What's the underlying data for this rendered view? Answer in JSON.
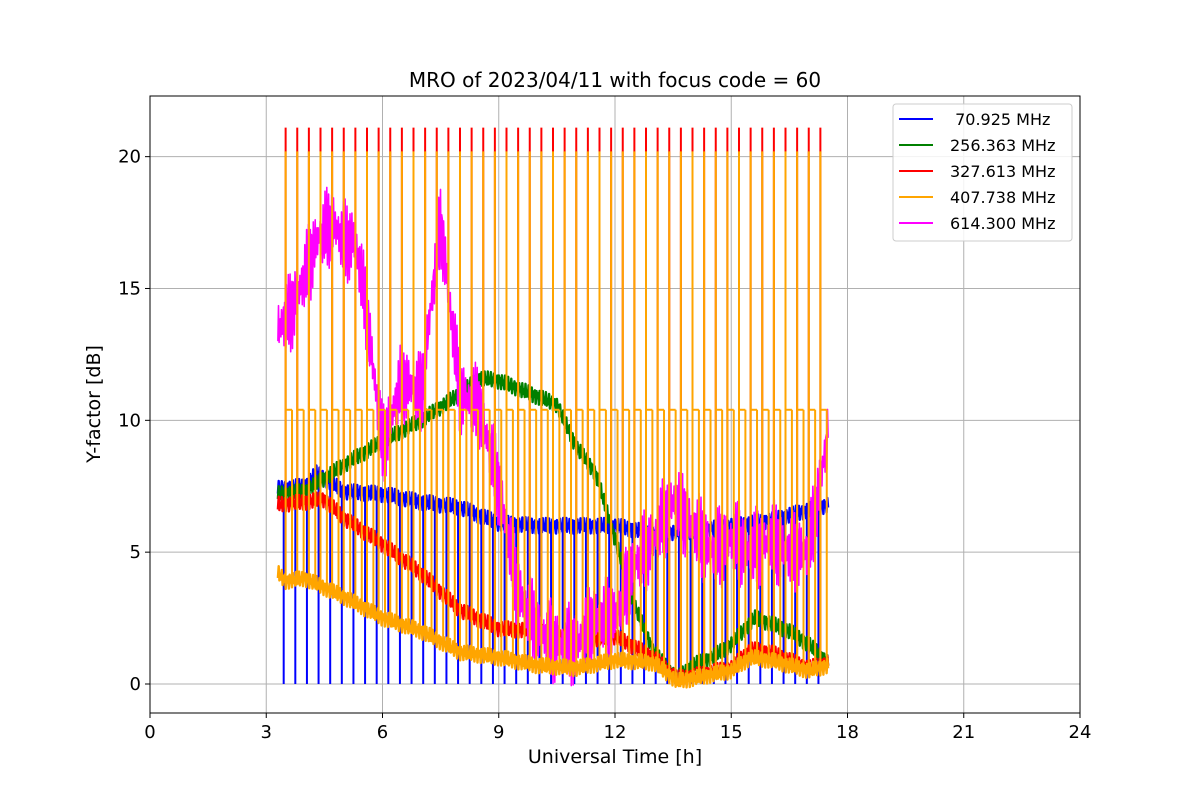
{
  "chart_data": {
    "type": "line",
    "title": "MRO of 2023/04/11 with focus code = 60",
    "xlabel": "Universal Time [h]",
    "ylabel": "Y-factor [dB]",
    "xlim": [
      0,
      24
    ],
    "ylim": [
      -1.1,
      22.3
    ],
    "xticks": [
      0,
      3,
      6,
      9,
      12,
      15,
      18,
      21,
      24
    ],
    "yticks": [
      0,
      5,
      10,
      15,
      20
    ],
    "grid": true,
    "legend_position": "top-right",
    "series": [
      {
        "name": " 70.925 MHz",
        "color": "#0000ff",
        "x": [
          3.3,
          4.0,
          4.3,
          5.0,
          6.0,
          7.0,
          8.0,
          9.0,
          10.0,
          11.0,
          12.0,
          13.0,
          14.0,
          15.0,
          16.0,
          17.0,
          17.5
        ],
        "values": [
          7.4,
          7.5,
          8.0,
          7.3,
          7.2,
          6.9,
          6.7,
          6.1,
          6.0,
          6.0,
          6.0,
          5.7,
          5.8,
          6.0,
          6.2,
          6.6,
          6.8
        ],
        "spikes": {
          "start": 3.45,
          "end": 17.5,
          "step": 0.3,
          "to": 0.0,
          "note": "periodic drops toward 0"
        }
      },
      {
        "name": "256.363 MHz",
        "color": "#008000",
        "x": [
          3.3,
          4.0,
          5.0,
          6.0,
          7.0,
          8.0,
          8.5,
          9.0,
          10.0,
          10.5,
          11.0,
          11.5,
          12.0,
          12.5,
          13.0,
          13.6,
          14.0,
          14.5,
          15.0,
          15.6,
          16.0,
          16.5,
          17.0,
          17.5
        ],
        "values": [
          7.2,
          7.3,
          8.3,
          9.2,
          10.0,
          11.0,
          11.6,
          11.5,
          10.9,
          10.6,
          9.0,
          8.0,
          5.5,
          3.0,
          1.2,
          0.2,
          0.7,
          1.0,
          1.5,
          2.5,
          2.3,
          2.0,
          1.5,
          0.8
        ]
      },
      {
        "name": "327.613 MHz",
        "color": "#ff0000",
        "x": [
          3.3,
          4.0,
          4.5,
          5.0,
          6.0,
          7.0,
          8.0,
          9.0,
          10.0,
          11.0,
          12.0,
          13.0,
          13.6,
          14.0,
          15.0,
          15.5,
          16.0,
          17.0,
          17.5
        ],
        "values": [
          6.8,
          6.9,
          7.0,
          6.3,
          5.3,
          4.2,
          2.8,
          2.1,
          2.0,
          1.6,
          1.8,
          1.0,
          0.2,
          0.3,
          0.6,
          1.3,
          1.2,
          0.6,
          0.8
        ],
        "spikes": {
          "start": 3.5,
          "end": 17.5,
          "step": 0.3,
          "to": 21.1,
          "note": "periodic peaks near 21"
        }
      },
      {
        "name": "407.738 MHz",
        "color": "#ffa500",
        "x": [
          3.3,
          3.5,
          4.0,
          5.0,
          6.0,
          7.0,
          8.0,
          9.0,
          10.0,
          11.0,
          12.0,
          13.0,
          13.6,
          14.0,
          15.0,
          15.5,
          16.0,
          17.0,
          17.5
        ],
        "values": [
          4.2,
          3.9,
          4.0,
          3.3,
          2.5,
          2.0,
          1.2,
          1.0,
          0.7,
          0.6,
          0.9,
          0.8,
          0.1,
          0.2,
          0.5,
          1.0,
          0.9,
          0.5,
          0.7
        ],
        "spikes": {
          "start": 3.5,
          "end": 17.5,
          "step": 0.3,
          "to": 20.2,
          "plateau": 10.4,
          "note": "periodic peaks near 20.2 with plateaus near 10.4"
        }
      },
      {
        "name": "614.300 MHz",
        "color": "#ff00ff",
        "x": [
          3.3,
          3.6,
          4.0,
          4.3,
          4.7,
          5.0,
          5.3,
          5.6,
          6.0,
          6.5,
          7.0,
          7.3,
          7.5,
          8.0,
          8.5,
          9.0,
          9.5,
          10.0,
          10.5,
          11.0,
          11.5,
          12.0,
          12.5,
          13.0,
          13.5,
          14.0,
          14.5,
          15.0,
          15.5,
          16.0,
          16.5,
          17.0,
          17.5
        ],
        "values": [
          13.5,
          14.0,
          15.5,
          16.8,
          17.5,
          16.8,
          16.8,
          14.0,
          9.0,
          11.5,
          11.0,
          15.0,
          17.5,
          11.0,
          10.5,
          7.5,
          3.5,
          2.0,
          1.5,
          1.5,
          2.5,
          2.5,
          4.5,
          5.5,
          7.0,
          6.0,
          5.0,
          5.5,
          5.0,
          5.5,
          5.0,
          5.0,
          9.5
        ]
      }
    ]
  }
}
